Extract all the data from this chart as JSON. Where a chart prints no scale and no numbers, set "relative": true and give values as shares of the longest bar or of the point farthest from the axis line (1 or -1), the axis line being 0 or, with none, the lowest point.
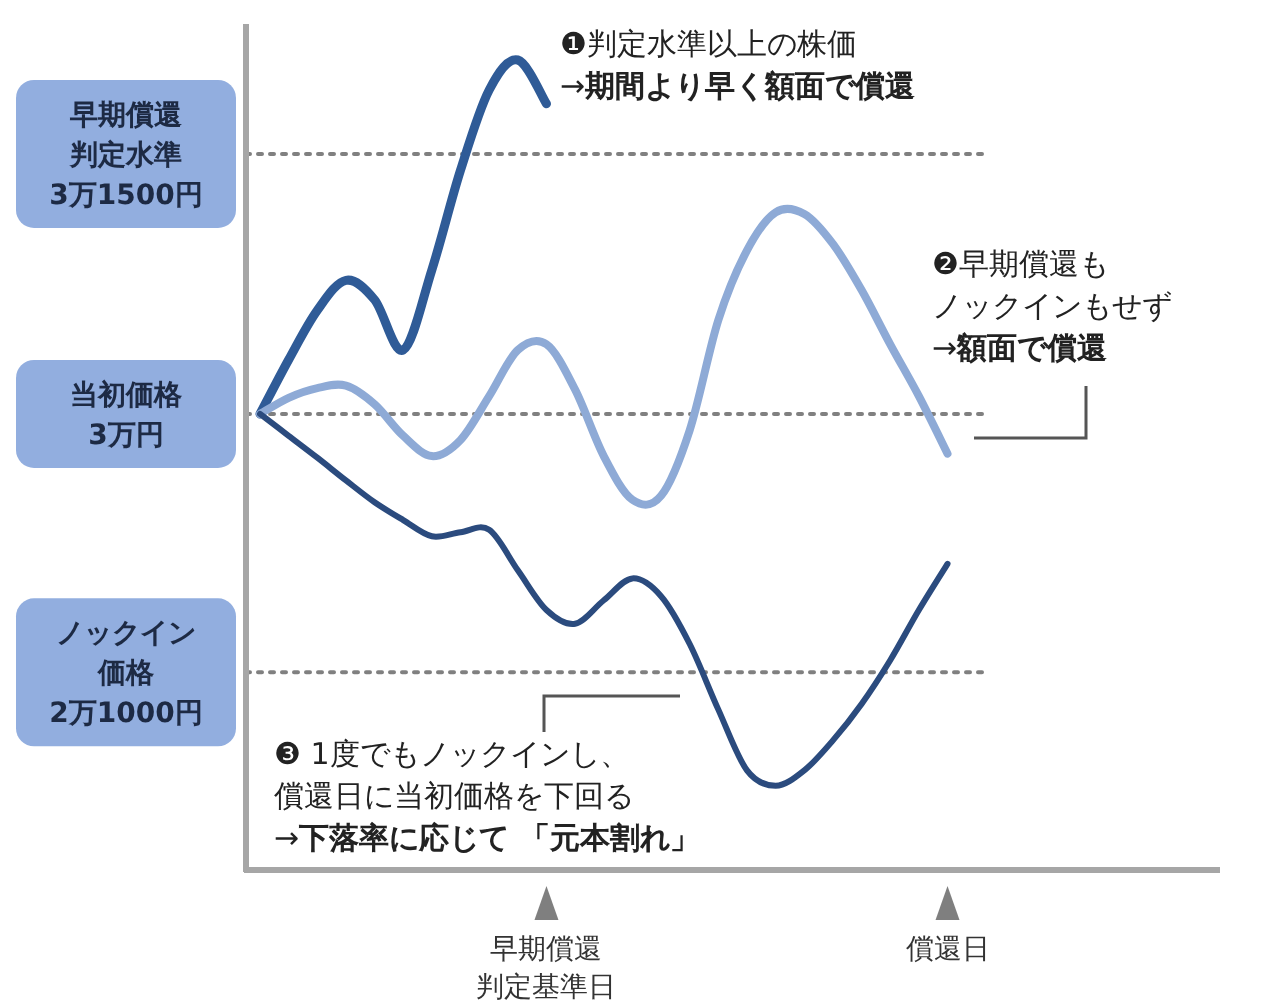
{
  "chart_data": {
    "type": "line",
    "relative": true,
    "categories": [
      null,
      null,
      null,
      null,
      null,
      null,
      null,
      null,
      null,
      null,
      null,
      null,
      null,
      null,
      null,
      null,
      null,
      null,
      null,
      null,
      null,
      null,
      null,
      null,
      null,
      null,
      null,
      null,
      null,
      null,
      null,
      null,
      null,
      null
    ],
    "series": [
      {
        "color": "#2f5b97",
        "values": [
          0.563,
          0.63,
          0.691,
          0.728,
          0.704,
          0.642,
          0.741,
          0.864,
          0.963,
          1,
          0.946,
          null,
          null,
          null,
          null,
          null,
          null,
          null,
          null,
          null,
          null,
          null,
          null,
          null,
          null,
          null,
          null,
          null,
          null,
          null,
          null,
          null,
          null,
          null
        ]
      },
      {
        "color": "#8eaad6",
        "values": [
          0.563,
          0.583,
          0.595,
          0.598,
          0.575,
          0.536,
          0.511,
          0.531,
          0.585,
          0.642,
          0.649,
          0.593,
          0.511,
          0.457,
          0.462,
          0.543,
          0.679,
          0.765,
          0.812,
          0.81,
          0.773,
          0.716,
          0.649,
          0.585,
          0.514,
          null,
          null,
          null,
          null,
          null,
          null,
          null,
          null,
          null
        ]
      },
      {
        "color": "#2b4b7e",
        "values": [
          0.563,
          0.536,
          0.509,
          0.481,
          0.454,
          0.432,
          0.412,
          0.417,
          0.42,
          0.37,
          0.321,
          0.304,
          0.333,
          0.36,
          0.338,
          0.279,
          0.198,
          0.123,
          0.104,
          0.123,
          0.16,
          0.205,
          0.259,
          0.321,
          0.378,
          null,
          null,
          null,
          null,
          null,
          null,
          null,
          null,
          null
        ]
      }
    ],
    "ref_lines": [
      {
        "axis": "y",
        "value": 0.884,
        "label": "早期償還判定水準3万1500円",
        "color": "#808080",
        "line_style": "dotted"
      },
      {
        "axis": "y",
        "value": 0.563,
        "label": "当初価格3万円",
        "color": "#808080",
        "line_style": "dotted"
      },
      {
        "axis": "y",
        "value": 0.244,
        "label": "ノックイン価格2万1000円",
        "color": "#808080",
        "line_style": "dotted"
      }
    ],
    "annotations": [
      "❶判定水準以上の株価\n→**期間より早く額面で償還**",
      "❷早期償還も",
      "ノックインもせず\n→**額面で償還**",
      "❸ 1度でもノックインし、償還日に当初価格を下回る\n→**下落率に応じて 「元本割れ」**",
      "早期償還",
      "判定基準日",
      "償還日"
    ],
    "grid": false,
    "marker": "none",
    "line_style": "solid"
  }
}
